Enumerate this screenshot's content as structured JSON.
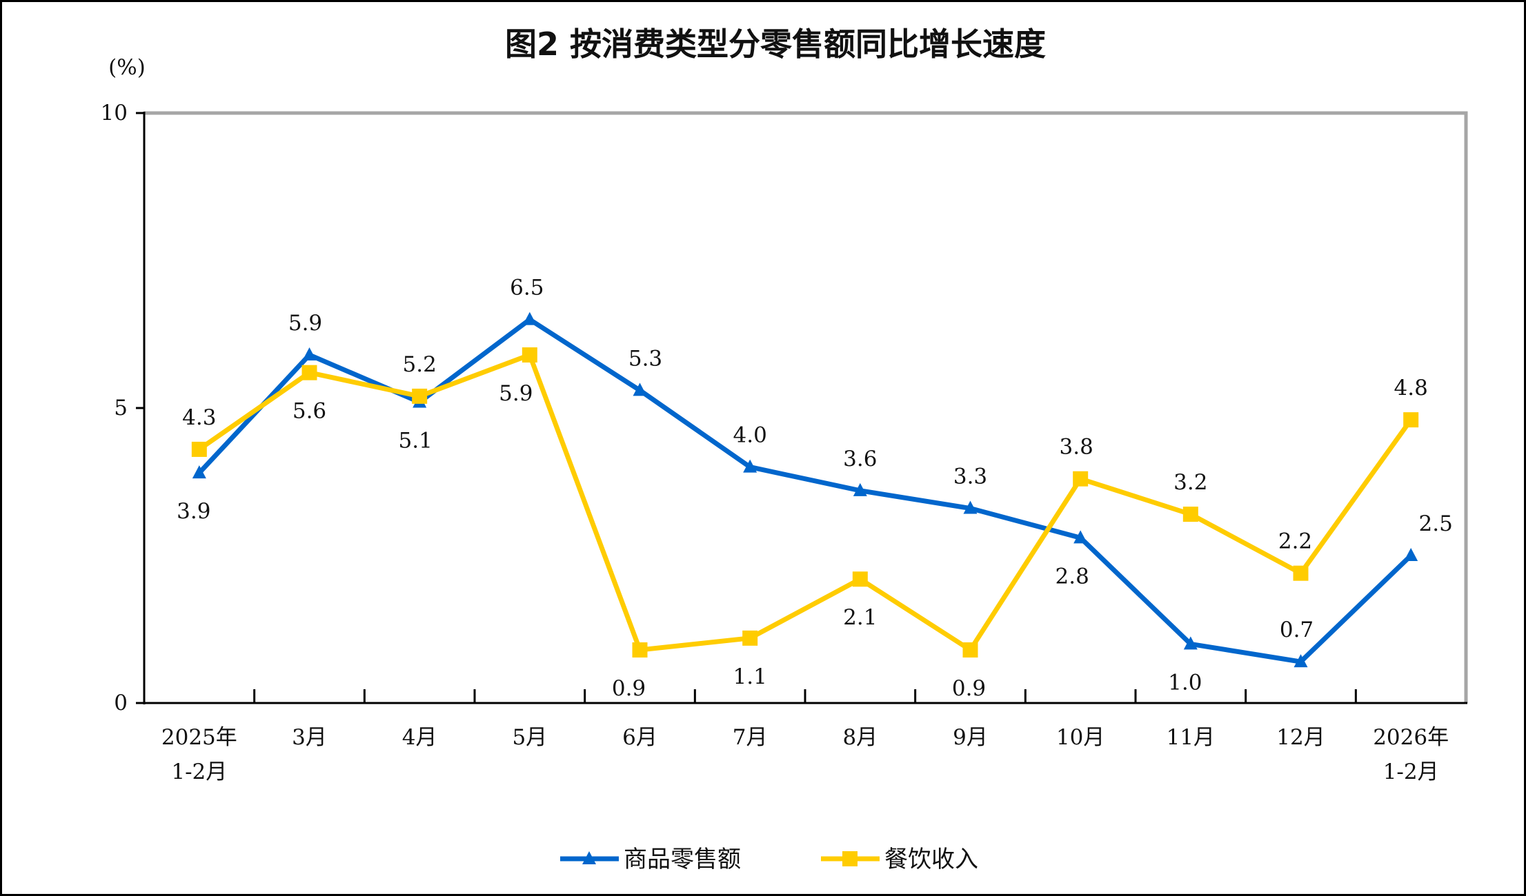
{
  "chart_data": {
    "type": "line",
    "title": "图2 按消费类型分零售额同比增长速度",
    "ylabel": "(%)",
    "xlabel": "",
    "ylim": [
      0,
      10
    ],
    "yticks": [
      "0",
      "5",
      "10"
    ],
    "categories": [
      [
        "2025年",
        "1-2月"
      ],
      [
        "3月"
      ],
      [
        "4月"
      ],
      [
        "5月"
      ],
      [
        "6月"
      ],
      [
        "7月"
      ],
      [
        "8月"
      ],
      [
        "9月"
      ],
      [
        "10月"
      ],
      [
        "11月"
      ],
      [
        "12月"
      ],
      [
        "2026年",
        "1-2月"
      ]
    ],
    "series": [
      {
        "name": "商品零售额",
        "color": "#0066cc",
        "marker": "triangle",
        "values": [
          3.9,
          5.9,
          5.1,
          6.5,
          5.3,
          4.0,
          3.6,
          3.3,
          2.8,
          1.0,
          0.7,
          2.5
        ],
        "labels": [
          "3.9",
          "5.9",
          "5.1",
          "6.5",
          "5.3",
          "4.0",
          "3.6",
          "3.3",
          "2.8",
          "1.0",
          "0.7",
          "2.5"
        ]
      },
      {
        "name": "餐饮收入",
        "color": "#ffcc00",
        "marker": "square",
        "values": [
          4.3,
          5.6,
          5.2,
          5.9,
          0.9,
          1.1,
          2.1,
          0.9,
          3.8,
          3.2,
          2.2,
          4.8
        ],
        "labels": [
          "4.3",
          "5.6",
          "5.2",
          "5.9",
          "0.9",
          "1.1",
          "2.1",
          "0.9",
          "3.8",
          "3.2",
          "2.2",
          "4.8"
        ]
      }
    ],
    "grid": false,
    "legend": "bottom-center"
  }
}
